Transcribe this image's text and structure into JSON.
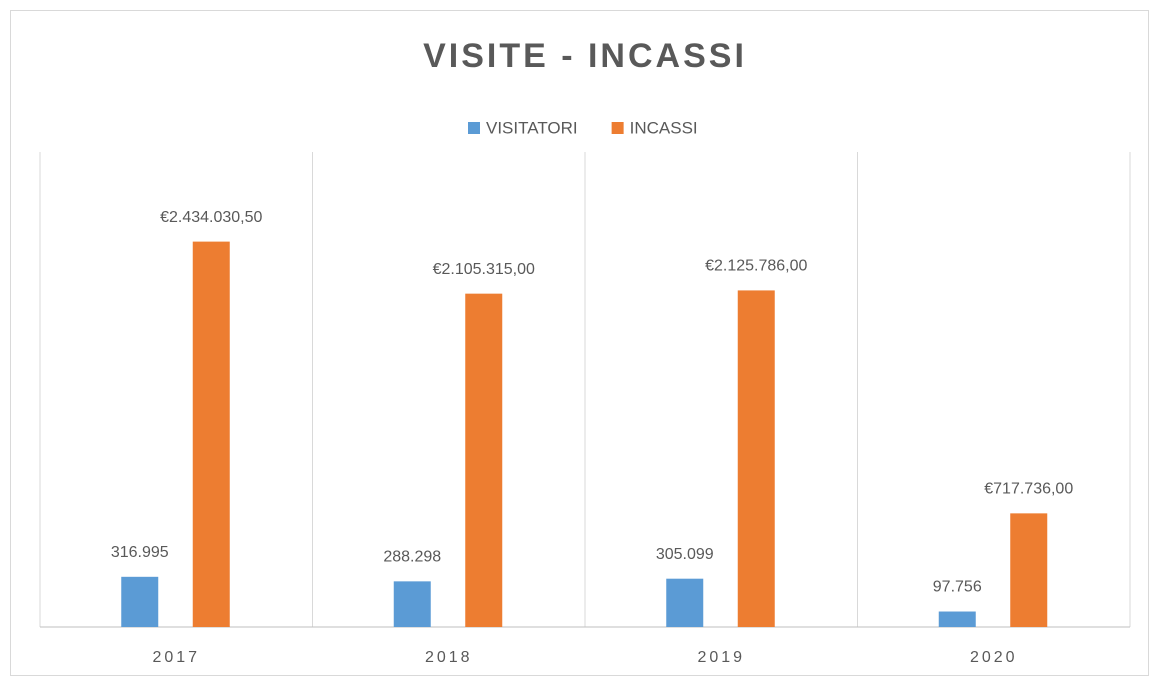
{
  "chart_data": {
    "type": "bar",
    "title": "VISITE - INCASSI",
    "categories": [
      "2017",
      "2018",
      "2019",
      "2020"
    ],
    "series": [
      {
        "name": "VISITATORI",
        "color": "#5b9bd5",
        "values": [
          316995,
          288298,
          305099,
          97756
        ],
        "value_labels": [
          "316.995",
          "288.298",
          "305.099",
          "97.756"
        ]
      },
      {
        "name": "INCASSI",
        "color": "#ed7d31",
        "values": [
          2434030.5,
          2105315,
          2125786,
          717736
        ],
        "value_labels": [
          "€2.434.030,50",
          "€2.105.315,00",
          "€2.125.786,00",
          "€717.736,00"
        ]
      }
    ],
    "ylim": [
      0,
      3000000
    ],
    "legend": "top"
  }
}
